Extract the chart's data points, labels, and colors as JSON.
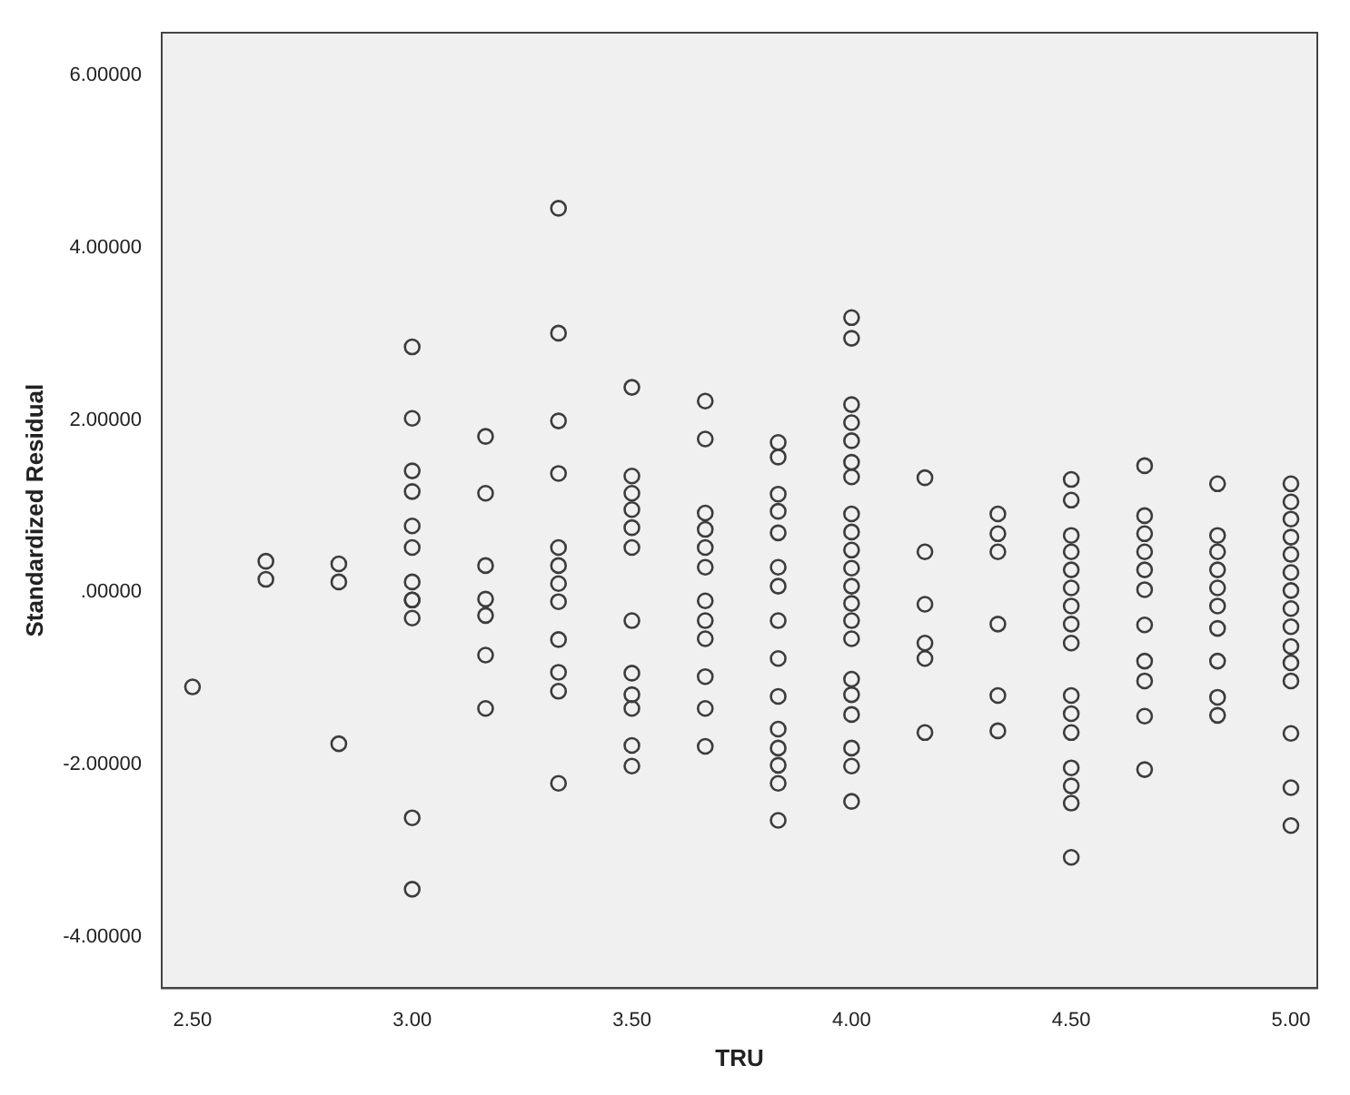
{
  "chart_data": {
    "type": "scatter",
    "xlabel": "TRU",
    "ylabel": "Standardized Residual",
    "marker": "circle",
    "grid": false,
    "legend": false,
    "xlim": [
      2.43,
      5.06
    ],
    "ylim": [
      -4.6,
      6.5
    ],
    "xticks": [
      {
        "value": 2.5,
        "label": "2.50"
      },
      {
        "value": 3,
        "label": "3.00"
      },
      {
        "value": 3.5,
        "label": "3.50"
      },
      {
        "value": 4,
        "label": "4.00"
      },
      {
        "value": 4.5,
        "label": "4.50"
      },
      {
        "value": 5,
        "label": "5.00"
      }
    ],
    "yticks": [
      {
        "value": -4,
        "label": "-4.00000"
      },
      {
        "value": -2,
        "label": "-2.00000"
      },
      {
        "value": 0,
        "label": ".00000"
      },
      {
        "value": 2,
        "label": "2.00000"
      },
      {
        "value": 4,
        "label": "4.00000"
      },
      {
        "value": 6,
        "label": "6.00000"
      }
    ],
    "series": [
      {
        "color": "#3c3c3c",
        "x": [
          2.5,
          2.667,
          2.667,
          2.833,
          2.833,
          2.833,
          3,
          3,
          3,
          3,
          3,
          3,
          3,
          3,
          3,
          3,
          3,
          3,
          3.167,
          3.167,
          3.167,
          3.167,
          3.167,
          3.167,
          3.167,
          3.333,
          3.333,
          3.333,
          3.333,
          3.333,
          3.333,
          3.333,
          3.333,
          3.333,
          3.333,
          3.333,
          3.333,
          3.5,
          3.5,
          3.5,
          3.5,
          3.5,
          3.5,
          3.5,
          3.5,
          3.5,
          3.5,
          3.5,
          3.5,
          3.667,
          3.667,
          3.667,
          3.667,
          3.667,
          3.667,
          3.667,
          3.667,
          3.667,
          3.667,
          3.667,
          3.667,
          3.833,
          3.833,
          3.833,
          3.833,
          3.833,
          3.833,
          3.833,
          3.833,
          3.833,
          3.833,
          3.833,
          3.833,
          3.833,
          3.833,
          3.833,
          4,
          4,
          4,
          4,
          4,
          4,
          4,
          4,
          4,
          4,
          4,
          4,
          4,
          4,
          4,
          4,
          4,
          4,
          4,
          4,
          4,
          4.167,
          4.167,
          4.167,
          4.167,
          4.167,
          4.167,
          4.333,
          4.333,
          4.333,
          4.333,
          4.333,
          4.333,
          4.5,
          4.5,
          4.5,
          4.5,
          4.5,
          4.5,
          4.5,
          4.5,
          4.5,
          4.5,
          4.5,
          4.5,
          4.5,
          4.5,
          4.5,
          4.5,
          4.667,
          4.667,
          4.667,
          4.667,
          4.667,
          4.667,
          4.667,
          4.667,
          4.667,
          4.667,
          4.667,
          4.833,
          4.833,
          4.833,
          4.833,
          4.833,
          4.833,
          4.833,
          4.833,
          4.833,
          4.833,
          5,
          5,
          5,
          5,
          5,
          5,
          5,
          5,
          5,
          5,
          5,
          5,
          5,
          5,
          5
        ],
        "values": [
          -1.1,
          0.36,
          0.15,
          0.33,
          0.12,
          -1.76,
          2.85,
          2.02,
          1.41,
          1.17,
          0.77,
          0.52,
          0.12,
          -0.09,
          -0.09,
          -0.3,
          -2.62,
          -3.45,
          1.81,
          1.15,
          0.31,
          -0.08,
          -0.27,
          -0.73,
          -1.35,
          4.46,
          3.01,
          1.99,
          1.38,
          0.52,
          0.31,
          0.1,
          -0.11,
          -0.55,
          -0.93,
          -1.15,
          -2.22,
          2.38,
          1.35,
          1.15,
          0.96,
          0.75,
          0.52,
          -0.33,
          -0.94,
          -1.19,
          -1.35,
          -1.78,
          -2.02,
          2.22,
          1.78,
          0.92,
          0.73,
          0.52,
          0.29,
          -0.1,
          -0.33,
          -0.54,
          -0.98,
          -1.35,
          -1.79,
          1.74,
          1.57,
          1.14,
          0.94,
          0.69,
          0.29,
          0.07,
          -0.33,
          -0.77,
          -1.21,
          -1.59,
          -1.81,
          -2.01,
          -2.22,
          -2.65,
          3.19,
          2.95,
          2.18,
          1.97,
          1.76,
          1.51,
          1.34,
          0.91,
          0.7,
          0.49,
          0.28,
          0.07,
          -0.13,
          -0.33,
          -0.54,
          -1.01,
          -1.19,
          -1.42,
          -1.81,
          -2.02,
          -2.43,
          1.33,
          0.47,
          -0.14,
          -0.59,
          -0.77,
          -1.63,
          0.91,
          0.68,
          0.47,
          -0.37,
          -1.2,
          -1.61,
          1.31,
          1.07,
          0.66,
          0.47,
          0.26,
          0.05,
          -0.16,
          -0.37,
          -0.59,
          -1.2,
          -1.41,
          -1.63,
          -2.04,
          -2.25,
          -2.45,
          -3.08,
          1.47,
          0.89,
          0.68,
          0.47,
          0.26,
          0.03,
          -0.38,
          -0.8,
          -1.03,
          -1.44,
          -2.06,
          1.26,
          0.66,
          0.47,
          0.26,
          0.05,
          -0.16,
          -0.42,
          -0.8,
          -1.22,
          -1.43,
          1.26,
          1.05,
          0.85,
          0.64,
          0.44,
          0.23,
          0.02,
          -0.19,
          -0.4,
          -0.63,
          -0.82,
          -1.03,
          -1.64,
          -2.27,
          -2.71
        ]
      }
    ]
  }
}
